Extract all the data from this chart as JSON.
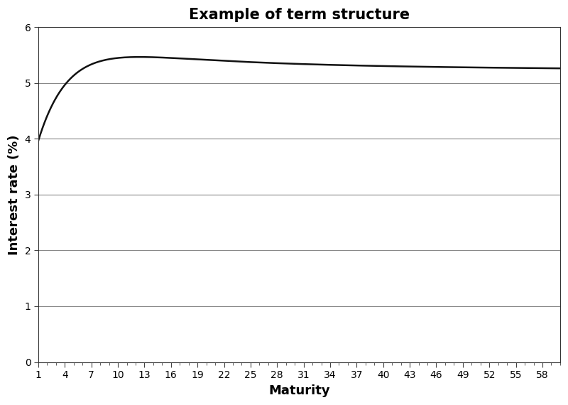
{
  "title": "Example of term structure",
  "xlabel": "Maturity",
  "ylabel": "Interest rate (%)",
  "xlim": [
    1,
    60
  ],
  "ylim": [
    0,
    6
  ],
  "yticks": [
    0,
    1,
    2,
    3,
    4,
    5,
    6
  ],
  "xticks": [
    1,
    4,
    7,
    10,
    13,
    16,
    19,
    22,
    25,
    28,
    31,
    34,
    37,
    40,
    43,
    46,
    49,
    52,
    55,
    58
  ],
  "line_color": "#111111",
  "line_width": 1.8,
  "background_color": "#ffffff",
  "title_fontsize": 15,
  "axis_label_fontsize": 13,
  "tick_fontsize": 10,
  "ns_beta0": 5.18,
  "ns_beta1": -1.82,
  "ns_beta2": 3.2,
  "ns_lambda": 0.28
}
